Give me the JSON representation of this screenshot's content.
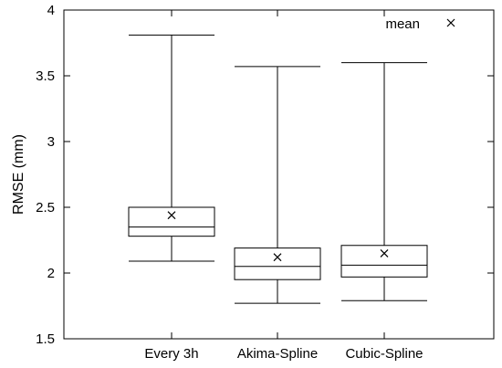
{
  "chart_data": {
    "type": "box",
    "title": "",
    "xlabel": "",
    "ylabel": "RMSE (mm)",
    "ylim": [
      1.5,
      4
    ],
    "yticks": [
      1.5,
      2,
      2.5,
      3,
      3.5,
      4
    ],
    "grid": false,
    "legend": {
      "placement": "top-right",
      "entries": [
        {
          "label": "mean",
          "marker": "x"
        }
      ]
    },
    "categories": [
      "Every 3h",
      "Akima-Spline",
      "Cubic-Spline"
    ],
    "boxes": [
      {
        "category": "Every 3h",
        "min": 2.09,
        "q1": 2.28,
        "median": 2.35,
        "q3": 2.5,
        "max": 3.81,
        "mean": 2.44
      },
      {
        "category": "Akima-Spline",
        "min": 1.77,
        "q1": 1.95,
        "median": 2.05,
        "q3": 2.19,
        "max": 3.57,
        "mean": 2.12
      },
      {
        "category": "Cubic-Spline",
        "min": 1.79,
        "q1": 1.97,
        "median": 2.06,
        "q3": 2.21,
        "max": 3.6,
        "mean": 2.15
      }
    ]
  }
}
